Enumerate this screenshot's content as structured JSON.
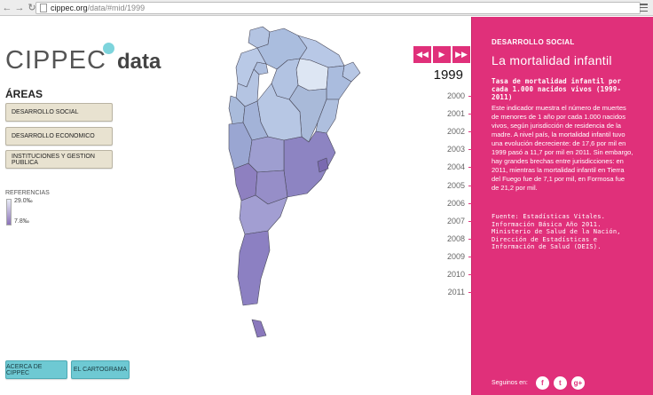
{
  "browser": {
    "url_host": "cippec.org",
    "url_path": "/data/#mid/1999"
  },
  "logo": {
    "name": "CIPPEC",
    "suffix": "data"
  },
  "areas": {
    "title": "ÁREAS",
    "items": [
      "DESARROLLO SOCIAL",
      "DESARROLLO ECONOMICO",
      "INSTITUCIONES Y GESTION PUBLICA"
    ]
  },
  "legend": {
    "label": "REFERENCIAS",
    "min": "29.0‰",
    "max": "7.8‰",
    "color_low": "#e8ecf6",
    "color_high": "#8a72b8"
  },
  "footer": {
    "about": "ACERCA DE CIPPEC",
    "cartogram": "EL CARTOGRAMA"
  },
  "timeline": {
    "selected": "1999",
    "years": [
      "2000",
      "2001",
      "2002",
      "2003",
      "2004",
      "2005",
      "2006",
      "2007",
      "2008",
      "2009",
      "2010",
      "2011"
    ]
  },
  "panel": {
    "section": "DESARROLLO SOCIAL",
    "title": "La mortalidad infantil",
    "subtitle": "Tasa de mortalidad infantil por cada 1.000 nacidos vivos (1999-2011)",
    "body": "Este indicador muestra el número de muertes de menores de 1 año por cada 1.000 nacidos vivos, según jurisdicción de residencia de la madre. A nivel país, la mortalidad infantil tuvo una evolución decreciente: de 17,6 por mil en 1999 pasó a 11,7 por mil en 2011. Sin embargo, hay grandes brechas entre jurisdicciones: en 2011, mientras la mortalidad infantil en Tierra del Fuego fue de 7,1 por mil, en Formosa fue de 21,2 por mil.",
    "source": "Fuente: Estadísticas Vitales. Información Básica Año 2011. Ministerio de Salud de la Nación, Dirección de Estadísticas e Información de Salud (DEIS).",
    "follow": "Seguinos en:",
    "accent": "#e0307a"
  }
}
